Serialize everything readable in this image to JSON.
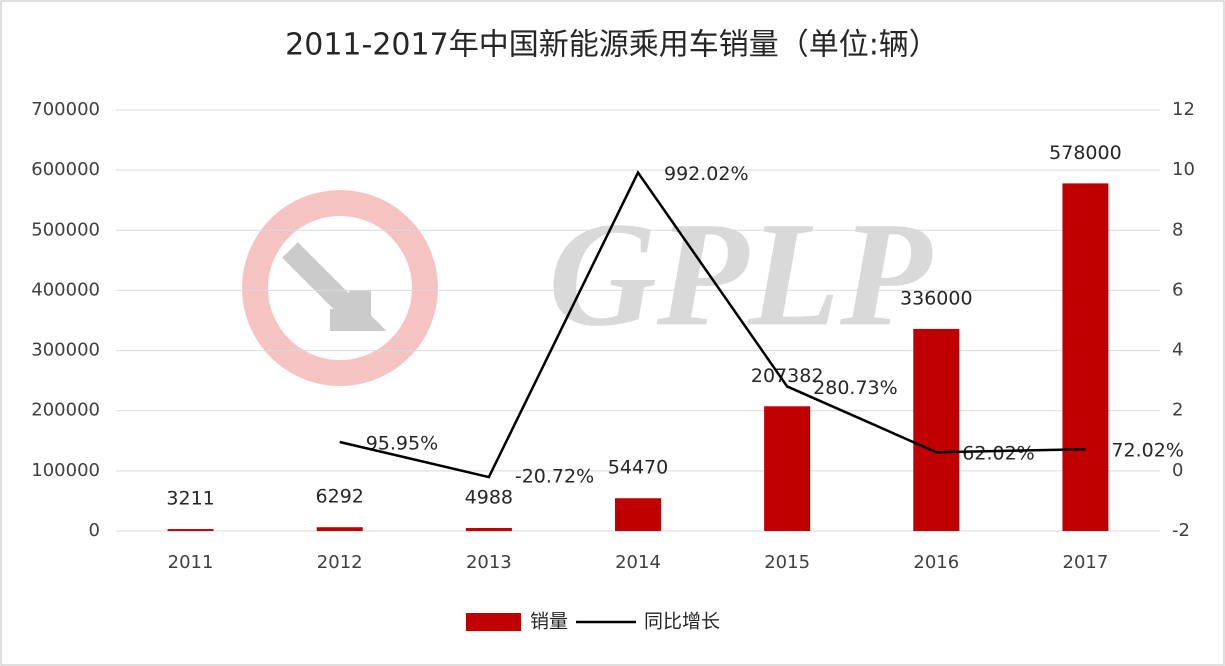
{
  "chart_data": {
    "type": "bar",
    "title": "2011-2017年中国新能源乘用车销量（单位:辆）",
    "watermark": "GPLP",
    "categories": [
      "2011",
      "2012",
      "2013",
      "2014",
      "2015",
      "2016",
      "2017"
    ],
    "series": [
      {
        "name": "销量",
        "type": "bar",
        "color": "#c00000",
        "values": [
          3211,
          6292,
          4988,
          54470,
          207382,
          336000,
          578000
        ]
      },
      {
        "name": "同比增长",
        "type": "line",
        "axis": "y2",
        "color": "#000000",
        "values": [
          null,
          0.9595,
          -0.2072,
          9.9202,
          2.8073,
          0.6202,
          0.7202
        ],
        "value_labels": [
          null,
          "95.95%",
          "-20.72%",
          "992.02%",
          "280.73%",
          "62.02%",
          "72.02%"
        ]
      }
    ],
    "ylim": [
      0,
      700000
    ],
    "yticks": [
      0,
      100000,
      200000,
      300000,
      400000,
      500000,
      600000,
      700000
    ],
    "y2lim": [
      -2,
      12
    ],
    "y2ticks": [
      -2,
      0,
      2,
      4,
      6,
      8,
      10,
      12
    ],
    "grid": true,
    "legend": "bottom"
  }
}
